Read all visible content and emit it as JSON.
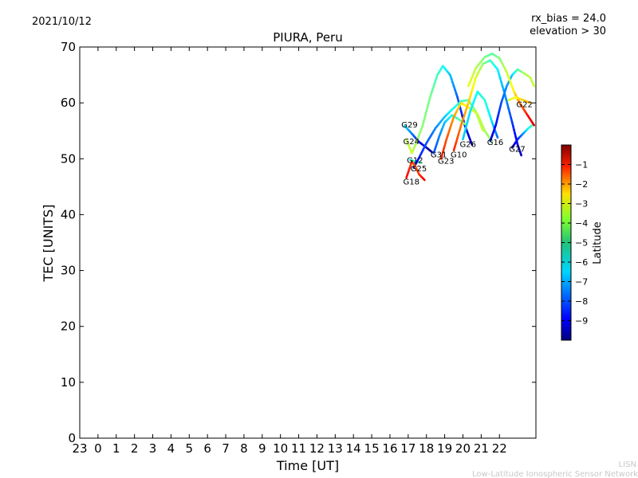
{
  "header": {
    "date": "2021/10/12",
    "rx_bias": "rx_bias = 24.0",
    "elevation": "elevation > 30",
    "footer_line1": "LISN",
    "footer_line2": "Low-Latitude Ionospheric Sensor Network"
  },
  "chart_data": {
    "type": "line",
    "title": "PIURA, Peru",
    "xlabel": "Time [UT]",
    "ylabel": "TEC [UNITS]",
    "xlim": [
      -1,
      24
    ],
    "ylim": [
      0,
      70
    ],
    "x_ticks": [
      -1,
      0,
      1,
      2,
      3,
      4,
      5,
      6,
      7,
      8,
      9,
      10,
      11,
      12,
      13,
      14,
      15,
      16,
      17,
      18,
      19,
      20,
      21,
      22
    ],
    "x_tick_labels": [
      "23",
      "0",
      "1",
      "2",
      "3",
      "4",
      "5",
      "6",
      "7",
      "8",
      "9",
      "10",
      "11",
      "12",
      "13",
      "14",
      "15",
      "16",
      "17",
      "18",
      "19",
      "20",
      "21",
      "22"
    ],
    "y_ticks": [
      0,
      10,
      20,
      30,
      40,
      50,
      60,
      70
    ],
    "y_tick_labels": [
      "0",
      "10",
      "20",
      "30",
      "40",
      "50",
      "60",
      "70"
    ],
    "colorbar": {
      "label": "Latitude",
      "range": [
        -10,
        0
      ],
      "ticks": [
        -1,
        -2,
        -3,
        -4,
        -5,
        -6,
        -7,
        -8,
        -9
      ],
      "tick_labels": [
        "−1",
        "−2",
        "−3",
        "−4",
        "−5",
        "−6",
        "−7",
        "−8",
        "−9"
      ]
    },
    "series": [
      {
        "name": "G29",
        "label": {
          "text": "G29",
          "x": 16.8,
          "y": 56.2
        },
        "points": [
          [
            16.8,
            55.9,
            -6.5
          ],
          [
            17.2,
            54.5,
            -7.5
          ],
          [
            17.6,
            53.0,
            -8.6
          ],
          [
            18.0,
            52.0,
            -9.4
          ],
          [
            18.3,
            51.2,
            -9.8
          ]
        ]
      },
      {
        "name": "G24",
        "label": {
          "text": "G24",
          "x": 16.9,
          "y": 53.2
        },
        "points": [
          [
            16.9,
            53.4,
            -4.5
          ],
          [
            17.2,
            51.0,
            -4.2
          ],
          [
            17.4,
            52.5,
            -4.6
          ],
          [
            17.8,
            56.0,
            -4.9
          ],
          [
            18.2,
            61.0,
            -5.1
          ],
          [
            18.6,
            65.0,
            -5.6
          ],
          [
            18.9,
            66.6,
            -6.0
          ],
          [
            19.3,
            65.0,
            -6.8
          ],
          [
            19.7,
            61.0,
            -7.8
          ],
          [
            20.1,
            56.0,
            -8.8
          ],
          [
            20.5,
            52.5,
            -9.5
          ]
        ]
      },
      {
        "name": "G12",
        "label": {
          "text": "G12",
          "x": 17.1,
          "y": 49.8
        },
        "points": [
          [
            17.1,
            49.8,
            -6.1
          ],
          [
            17.4,
            49.5,
            -5.8
          ],
          [
            17.7,
            49.3,
            -5.5
          ]
        ]
      },
      {
        "name": "G25",
        "label": {
          "text": "G25",
          "x": 17.3,
          "y": 48.3
        },
        "points": [
          [
            17.3,
            48.4,
            -9.5
          ],
          [
            17.6,
            50.2,
            -8.5
          ],
          [
            18.0,
            52.8,
            -8.0
          ],
          [
            18.5,
            55.5,
            -7.4
          ],
          [
            19.0,
            57.5,
            -6.8
          ],
          [
            19.4,
            58.8,
            -6.2
          ],
          [
            19.9,
            60.3,
            -5.8
          ],
          [
            20.3,
            60.5,
            -5.3
          ],
          [
            20.7,
            58.5,
            -4.7
          ],
          [
            21.1,
            55.0,
            -4.2
          ]
        ]
      },
      {
        "name": "G18",
        "label": {
          "text": "G18",
          "x": 16.9,
          "y": 46.0
        },
        "points": [
          [
            16.9,
            46.6,
            -1.2
          ],
          [
            17.2,
            49.5,
            -1.8
          ],
          [
            17.4,
            48.6,
            -2.2
          ],
          [
            17.6,
            47.2,
            -1.8
          ],
          [
            17.9,
            46.2,
            -1.2
          ]
        ]
      },
      {
        "name": "G31",
        "label": {
          "text": "G31",
          "x": 18.4,
          "y": 50.8
        },
        "points": [
          [
            18.4,
            51.0,
            -8.0
          ],
          [
            18.7,
            54.0,
            -7.5
          ],
          [
            19.0,
            56.5,
            -6.9
          ],
          [
            19.4,
            57.8,
            -6.2
          ],
          [
            19.8,
            57.0,
            -5.5
          ],
          [
            20.2,
            56.0,
            -4.7
          ]
        ]
      },
      {
        "name": "G23",
        "label": {
          "text": "G23",
          "x": 18.8,
          "y": 49.7
        },
        "points": [
          [
            18.8,
            50.0,
            -1.5
          ],
          [
            19.1,
            53.5,
            -2.0
          ],
          [
            19.5,
            57.5,
            -2.7
          ],
          [
            19.9,
            60.0,
            -3.4
          ],
          [
            20.3,
            59.2,
            -3.9
          ],
          [
            20.8,
            58.0,
            -4.3
          ],
          [
            21.2,
            55.0,
            -4.6
          ],
          [
            21.6,
            53.0,
            -4.9
          ]
        ]
      },
      {
        "name": "G10",
        "label": {
          "text": "G10",
          "x": 19.5,
          "y": 50.8
        },
        "points": [
          [
            19.5,
            51.5,
            -1.6
          ],
          [
            19.9,
            56.0,
            -2.4
          ],
          [
            20.3,
            60.0,
            -3.2
          ],
          [
            20.7,
            64.5,
            -4.0
          ],
          [
            21.1,
            67.0,
            -4.8
          ],
          [
            21.5,
            67.6,
            -5.6
          ],
          [
            21.9,
            66.0,
            -6.3
          ],
          [
            22.3,
            61.5,
            -7.2
          ],
          [
            22.7,
            56.5,
            -8.2
          ],
          [
            23.0,
            52.5,
            -9.0
          ],
          [
            23.2,
            50.6,
            -9.5
          ]
        ]
      },
      {
        "name": "G26",
        "label": {
          "text": "G26",
          "x": 20.0,
          "y": 52.7
        },
        "points": [
          [
            20.0,
            53.5,
            -6.8
          ],
          [
            20.4,
            58.5,
            -6.5
          ],
          [
            20.8,
            62.0,
            -6.1
          ],
          [
            21.2,
            60.5,
            -5.8
          ],
          [
            21.6,
            56.5,
            -6.6
          ],
          [
            21.9,
            53.8,
            -7.8
          ]
        ]
      },
      {
        "name": "G16",
        "label": {
          "text": "G16",
          "x": 21.5,
          "y": 53.0
        },
        "points": [
          [
            21.5,
            53.2,
            -9.5
          ],
          [
            21.8,
            56.0,
            -8.7
          ],
          [
            22.1,
            60.0,
            -8.0
          ],
          [
            22.4,
            63.0,
            -7.3
          ],
          [
            22.7,
            65.0,
            -6.8
          ],
          [
            23.0,
            66.0,
            -5.5
          ],
          [
            23.4,
            65.2,
            -4.6
          ],
          [
            23.7,
            64.5,
            -4.4
          ],
          [
            23.9,
            63.0,
            -4.3
          ]
        ]
      },
      {
        "name": "G27",
        "label": {
          "text": "G27",
          "x": 22.7,
          "y": 51.8
        },
        "points": [
          [
            22.7,
            52.0,
            -9.8
          ],
          [
            23.0,
            53.5,
            -8.6
          ],
          [
            23.3,
            54.5,
            -7.4
          ],
          [
            23.6,
            55.5,
            -6.2
          ],
          [
            23.8,
            56.0,
            -5.6
          ]
        ]
      },
      {
        "name": "G22",
        "label": {
          "text": "G22",
          "x": 23.1,
          "y": 59.8
        },
        "points": [
          [
            20.3,
            63.0,
            -3.9
          ],
          [
            20.7,
            66.2,
            -4.4
          ],
          [
            21.2,
            68.2,
            -5.0
          ],
          [
            21.6,
            68.8,
            -5.4
          ],
          [
            22.0,
            68.0,
            -5.0
          ],
          [
            22.4,
            65.5,
            -4.3
          ],
          [
            22.8,
            62.0,
            -3.6
          ],
          [
            23.1,
            60.0,
            -2.5
          ],
          [
            23.5,
            58.0,
            -1.5
          ],
          [
            23.9,
            56.0,
            -0.8
          ]
        ]
      },
      {
        "name": "G22b",
        "label": null,
        "points": [
          [
            22.5,
            60.5,
            -4.2
          ],
          [
            22.9,
            61.0,
            -3.8
          ],
          [
            23.3,
            60.5,
            -3.3
          ],
          [
            23.7,
            60.0,
            -3.0
          ]
        ]
      }
    ]
  }
}
